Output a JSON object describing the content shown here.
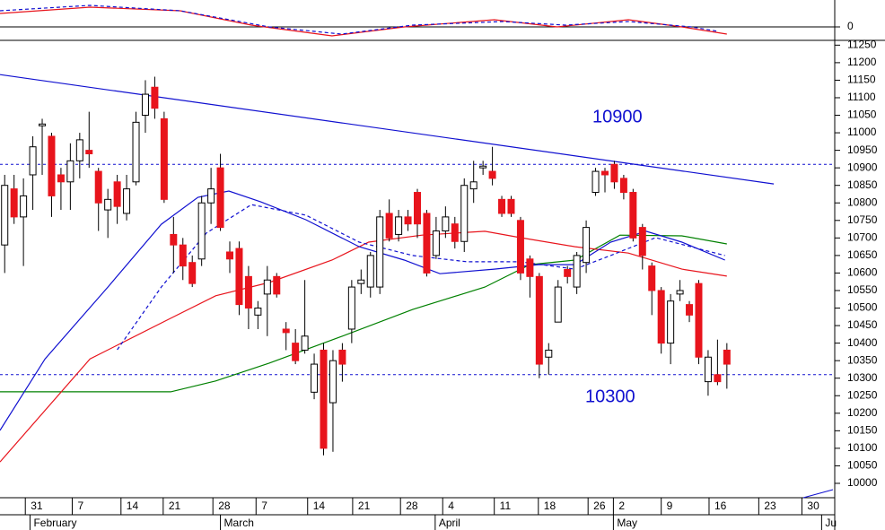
{
  "chart_data": [
    {
      "type": "candlestick",
      "categories": [
        null,
        null,
        null,
        null,
        null,
        null,
        null,
        null,
        null,
        null,
        null,
        null,
        null,
        null,
        null,
        null,
        null,
        null,
        null,
        null,
        null,
        null,
        null,
        null,
        null,
        null,
        null,
        null,
        null,
        null,
        null,
        null,
        null,
        null,
        null,
        null,
        null,
        null,
        null,
        null,
        null,
        null,
        null,
        null,
        null,
        null,
        null,
        null,
        null,
        null,
        null,
        null,
        null,
        null,
        null,
        null,
        null,
        null,
        null,
        null,
        null,
        null,
        null,
        null,
        null,
        null,
        null,
        null,
        null,
        null,
        null,
        null,
        null,
        null,
        null,
        null,
        null,
        null
      ],
      "open": [
        10680,
        10840,
        10760,
        10880,
        11020,
        10990,
        10880,
        10860,
        10920,
        10950,
        10890,
        10780,
        10860,
        10770,
        10860,
        11050,
        11130,
        11040,
        10710,
        10680,
        10630,
        10640,
        10800,
        10900,
        10660,
        10670,
        10590,
        10480,
        10540,
        10590,
        10440,
        10400,
        10380,
        10260,
        10380,
        10230,
        10380,
        10440,
        10570,
        10560,
        10560,
        10770,
        10710,
        10760,
        10830,
        10770,
        10650,
        10720,
        10740,
        10690,
        10840,
        10900,
        10890,
        10810,
        10810,
        10750,
        10640,
        10590,
        10360,
        10460,
        10610,
        10560,
        10630,
        10830,
        10890,
        10910,
        10870,
        10830,
        10730,
        10620,
        10550,
        10400,
        10540,
        10510,
        10570,
        10290,
        10310,
        10380
      ],
      "high": [
        10880,
        10880,
        10870,
        10990,
        11040,
        11000,
        10900,
        10970,
        11000,
        11060,
        10900,
        10840,
        10880,
        10880,
        11060,
        11150,
        11160,
        11060,
        10760,
        10700,
        10650,
        10820,
        10900,
        10940,
        10690,
        10690,
        10620,
        10520,
        10620,
        10600,
        10460,
        10440,
        10580,
        10370,
        10400,
        10380,
        10400,
        10580,
        10610,
        10660,
        10780,
        10810,
        10780,
        10780,
        10840,
        10780,
        10760,
        10790,
        10760,
        10870,
        10920,
        10920,
        10960,
        10820,
        10820,
        10760,
        10650,
        10600,
        10400,
        10580,
        10620,
        10660,
        10750,
        10900,
        10900,
        10920,
        10880,
        10840,
        10740,
        10630,
        10560,
        10540,
        10580,
        10520,
        10580,
        10380,
        10410,
        10400
      ],
      "low": [
        10600,
        10740,
        10620,
        10780,
        10880,
        10760,
        10780,
        10780,
        10870,
        10900,
        10720,
        10700,
        10740,
        10750,
        10850,
        11000,
        11040,
        10800,
        10600,
        10580,
        10560,
        10620,
        10740,
        10720,
        10600,
        10480,
        10440,
        10440,
        10420,
        10530,
        10380,
        10340,
        10370,
        10240,
        10080,
        10090,
        10290,
        10400,
        10540,
        10530,
        10540,
        10690,
        10690,
        10720,
        10700,
        10590,
        10640,
        10700,
        10670,
        10660,
        10800,
        10880,
        10850,
        10760,
        10760,
        10580,
        10530,
        10300,
        10310,
        10460,
        10570,
        10540,
        10600,
        10820,
        10830,
        10840,
        10810,
        10690,
        10610,
        10480,
        10370,
        10340,
        10520,
        10460,
        10340,
        10250,
        10280,
        10270
      ],
      "close": [
        10850,
        10760,
        10820,
        10960,
        11025,
        10820,
        10860,
        10920,
        10980,
        10940,
        10800,
        10810,
        10790,
        10840,
        11030,
        11110,
        11070,
        10810,
        10680,
        10620,
        10570,
        10800,
        10840,
        10730,
        10640,
        10510,
        10500,
        10500,
        10580,
        10540,
        10430,
        10350,
        10420,
        10340,
        10100,
        10350,
        10340,
        10560,
        10580,
        10650,
        10760,
        10700,
        10760,
        10740,
        10740,
        10600,
        10720,
        10760,
        10690,
        10850,
        10860,
        10905,
        10870,
        10770,
        10770,
        10600,
        10590,
        10340,
        10380,
        10560,
        10590,
        10650,
        10730,
        10890,
        10880,
        10860,
        10830,
        10700,
        10650,
        10550,
        10400,
        10520,
        10550,
        10480,
        10360,
        10360,
        10290,
        10340
      ],
      "up_color": "#ffffff",
      "down_color": "#e8141c",
      "lines": [
        {
          "color": "#008000",
          "dash": false,
          "x": [
            -0.5,
            17.7,
            22.5,
            28.2,
            35.9,
            43.5,
            51.2,
            56,
            60.8,
            65.6,
            72.2,
            77
          ],
          "values": [
            10261,
            10261,
            10292,
            10343,
            10419,
            10496,
            10560,
            10624,
            10637,
            10708,
            10706,
            10683
          ]
        },
        {
          "color": "#e8141c",
          "dash": false,
          "x": [
            -0.5,
            9.1,
            17.7,
            22.5,
            28.2,
            34.9,
            38.8,
            44.5,
            51.2,
            55,
            60.8,
            66.5,
            72.2,
            77
          ],
          "values": [
            10061,
            10355,
            10471,
            10535,
            10573,
            10637,
            10688,
            10708,
            10719,
            10701,
            10675,
            10657,
            10611,
            10591
          ]
        },
        {
          "color": "#1010d0",
          "dash": false,
          "x": [
            -0.5,
            4.3,
            11,
            16.7,
            20.6,
            23.9,
            27.3,
            32.1,
            37.8,
            42.6,
            46.4,
            52.2,
            56.9,
            60.8,
            64.6,
            68.4,
            72.2,
            76.8
          ],
          "values": [
            10151,
            10355,
            10560,
            10739,
            10816,
            10834,
            10803,
            10752,
            10675,
            10637,
            10598,
            10611,
            10624,
            10624,
            10688,
            10719,
            10688,
            10637
          ]
        },
        {
          "color": "#1010d0",
          "dash": true,
          "x": [
            12,
            16.7,
            21.5,
            26.3,
            32.1,
            37.8,
            43.5,
            49.3,
            55,
            60.8,
            64.6,
            69.4,
            76.8
          ],
          "values": [
            10381,
            10560,
            10714,
            10795,
            10765,
            10688,
            10650,
            10632,
            10632,
            10611,
            10650,
            10701,
            10650
          ]
        },
        {
          "color": "#1010d0",
          "dash": false,
          "x": [
            -0.5,
            82
          ],
          "values": [
            11166,
            10854
          ]
        }
      ],
      "levels": [
        10910,
        10310
      ],
      "annotations": [
        "10900",
        "10300"
      ],
      "xlim": [
        -0.5,
        88.5
      ],
      "xticks": [
        {
          "value": 2.2,
          "label": "31"
        },
        {
          "value": 7.2,
          "label": "7"
        },
        {
          "value": 12.4,
          "label": "14"
        },
        {
          "value": 16.9,
          "label": "21"
        },
        {
          "value": 22.2,
          "label": "28"
        },
        {
          "value": 26.8,
          "label": "7"
        },
        {
          "value": 32.3,
          "label": "14"
        },
        {
          "value": 37.1,
          "label": "21"
        },
        {
          "value": 42.2,
          "label": "28"
        },
        {
          "value": 46.7,
          "label": "4"
        },
        {
          "value": 52.2,
          "label": "11"
        },
        {
          "value": 56.9,
          "label": "18"
        },
        {
          "value": 62.2,
          "label": "26"
        },
        {
          "value": 64.9,
          "label": "2"
        },
        {
          "value": 70,
          "label": "9"
        },
        {
          "value": 75.1,
          "label": "16"
        },
        {
          "value": 80.4,
          "label": "23"
        },
        {
          "value": 85,
          "label": "30"
        }
      ],
      "months": [
        {
          "value": 2.7,
          "label": "February"
        },
        {
          "value": 23,
          "label": "March"
        },
        {
          "value": 45.9,
          "label": "April"
        },
        {
          "value": 64.9,
          "label": "May"
        },
        {
          "value": 87.1,
          "label": "Ju"
        }
      ],
      "ylim": [
        9959,
        11256
      ],
      "yticks": [
        10000,
        10050,
        10100,
        10150,
        10200,
        10250,
        10300,
        10350,
        10400,
        10450,
        10500,
        10550,
        10600,
        10650,
        10700,
        10750,
        10800,
        10850,
        10900,
        10950,
        11000,
        11050,
        11100,
        11150,
        11200,
        11250
      ]
    },
    {
      "type": "oscillator",
      "lines": [
        {
          "color": "#e8141c",
          "dash": false,
          "x": [
            -0.5,
            9.1,
            18.7,
            26.3,
            34.9,
            42.6,
            52.2,
            58.9,
            66.5,
            72.2,
            77
          ],
          "values": [
            15,
            22,
            18,
            2,
            -10,
            0,
            8,
            0,
            8,
            0,
            -8
          ]
        },
        {
          "color": "#1010d0",
          "dash": true,
          "x": [
            -0.5,
            9.1,
            18.7,
            28.2,
            35.9,
            43.5,
            53.1,
            59.8,
            66.5,
            73.2,
            76.1
          ],
          "values": [
            18,
            24,
            18,
            0,
            -8,
            2,
            6,
            2,
            6,
            0,
            -5
          ]
        }
      ],
      "ylim": [
        -15,
        28
      ],
      "yticks": [
        0
      ]
    }
  ]
}
